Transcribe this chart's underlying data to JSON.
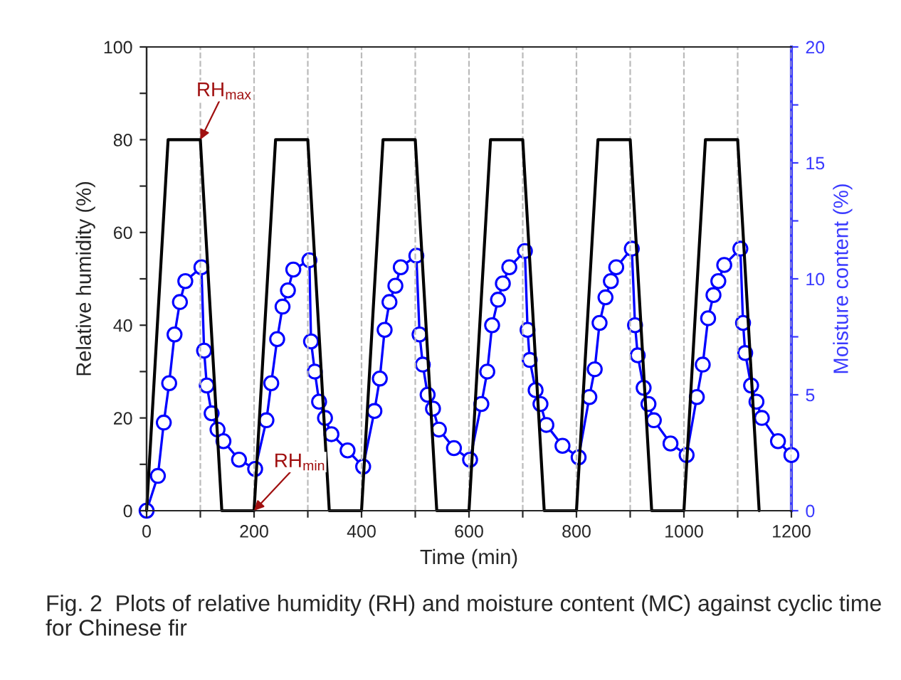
{
  "chart_data": {
    "type": "line",
    "xlabel": "Time (min)",
    "ylabel": "Relative humidity (%)",
    "y2label": "Moisture content (%)",
    "xlim": [
      0,
      1200
    ],
    "xticks": [
      0,
      {
        "value": 100,
        "label": null
      },
      200,
      {
        "value": 300,
        "label": null
      },
      400,
      {
        "value": 500,
        "label": null
      },
      600,
      {
        "value": 700,
        "label": null
      },
      800,
      {
        "value": 900,
        "label": null
      },
      1000,
      {
        "value": 1100,
        "label": null
      },
      1200
    ],
    "ylim": [
      0,
      100
    ],
    "yticks": [
      0,
      {
        "value": 10,
        "label": null
      },
      20,
      {
        "value": 30,
        "label": null
      },
      40,
      {
        "value": 50,
        "label": null
      },
      60,
      {
        "value": 70,
        "label": null
      },
      80,
      {
        "value": 90,
        "label": null
      },
      100
    ],
    "y2lim": [
      0,
      20
    ],
    "y2ticks": [
      0,
      {
        "value": 2.5,
        "label": null
      },
      5,
      {
        "value": 7.5,
        "label": null
      },
      10,
      {
        "value": 12.5,
        "label": null
      },
      15,
      {
        "value": 17.5,
        "label": null
      },
      20
    ],
    "grid": "x",
    "legend": false,
    "series": [
      {
        "color": "#000000",
        "marker": "none",
        "x": [
          0,
          40,
          100,
          140,
          200,
          240,
          300,
          340,
          400,
          440,
          500,
          540,
          600,
          640,
          700,
          740,
          800,
          840,
          900,
          940,
          1000,
          1040,
          1100,
          1140
        ],
        "values": [
          0,
          80,
          80,
          0,
          0,
          80,
          80,
          0,
          0,
          80,
          80,
          0,
          0,
          80,
          80,
          0,
          0,
          80,
          80,
          0,
          0,
          80,
          80,
          0
        ]
      },
      {
        "color": "#0000ff",
        "marker": "circle",
        "axis": "y2",
        "x": [
          0,
          21,
          32,
          42,
          52,
          62,
          72,
          102,
          107,
          112,
          121,
          132,
          143,
          172,
          202,
          223,
          232,
          243,
          253,
          263,
          273,
          303,
          306,
          313,
          321,
          332,
          344,
          374,
          403,
          424,
          434,
          443,
          452,
          463,
          473,
          502,
          508,
          514,
          523,
          533,
          544,
          572,
          602,
          623,
          634,
          643,
          654,
          663,
          675,
          704,
          709,
          713,
          724,
          733,
          744,
          774,
          804,
          824,
          834,
          843,
          854,
          864,
          874,
          903,
          909,
          914,
          925,
          934,
          944,
          975,
          1005,
          1024,
          1035,
          1045,
          1055,
          1064,
          1075,
          1105,
          1110,
          1114,
          1125,
          1135,
          1145,
          1175,
          1200
        ],
        "values": [
          0,
          1.5,
          3.8,
          5.5,
          7.6,
          9.0,
          9.9,
          10.5,
          6.9,
          5.4,
          4.2,
          3.5,
          3.0,
          2.2,
          1.8,
          3.9,
          5.5,
          7.4,
          8.8,
          9.5,
          10.4,
          10.8,
          7.3,
          6.0,
          4.7,
          4.0,
          3.3,
          2.6,
          1.9,
          4.3,
          5.7,
          7.8,
          9.0,
          9.7,
          10.5,
          11.0,
          7.6,
          6.3,
          5.0,
          4.4,
          3.5,
          2.7,
          2.2,
          4.6,
          6.0,
          8.0,
          9.1,
          9.8,
          10.5,
          11.2,
          7.8,
          6.5,
          5.2,
          4.6,
          3.7,
          2.8,
          2.3,
          4.9,
          6.1,
          8.1,
          9.2,
          9.9,
          10.5,
          11.3,
          8.0,
          6.7,
          5.3,
          4.6,
          3.9,
          2.9,
          2.4,
          4.9,
          6.3,
          8.3,
          9.3,
          9.9,
          10.6,
          11.3,
          8.1,
          6.8,
          5.4,
          4.7,
          4.0,
          3.0,
          2.4
        ]
      }
    ],
    "annotations": [
      {
        "text": "RH$_{max}$",
        "x": 100,
        "y": 80
      },
      {
        "text": "RH$_{min}$",
        "x": 200,
        "y": 0
      },
      "Fig. 2  Plots of relative humidity (RH) and moisture content (MC) against cyclic time for Chinese fir"
    ]
  }
}
